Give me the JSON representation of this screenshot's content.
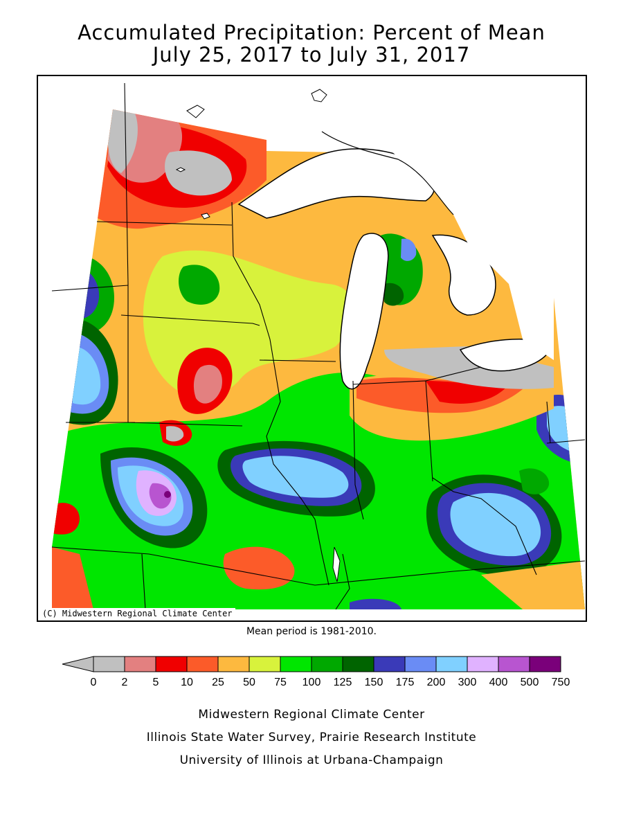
{
  "title_line1": "Accumulated Precipitation: Percent of Mean",
  "title_line2": "July 25, 2017 to July 31, 2017",
  "map_credit": "(C) Midwestern Regional Climate Center",
  "mean_period": "Mean period is 1981-2010.",
  "legend": {
    "under_color": "#c0c0c0",
    "labels": [
      "0",
      "2",
      "5",
      "10",
      "25",
      "50",
      "75",
      "100",
      "125",
      "150",
      "175",
      "200",
      "300",
      "400",
      "500",
      "750"
    ],
    "colors": [
      "#c0c0c0",
      "#e38080",
      "#f00000",
      "#fc5b29",
      "#fdb93f",
      "#d8f23c",
      "#00e600",
      "#00a800",
      "#006400",
      "#3a3ab8",
      "#6a8cf5",
      "#80d0ff",
      "#e0b2ff",
      "#b855d0",
      "#7a007a"
    ]
  },
  "footer": {
    "line1": "Midwestern Regional Climate Center",
    "line2": "Illinois State Water Survey, Prairie Research Institute",
    "line3": "University of Illinois at Urbana-Champaign"
  }
}
